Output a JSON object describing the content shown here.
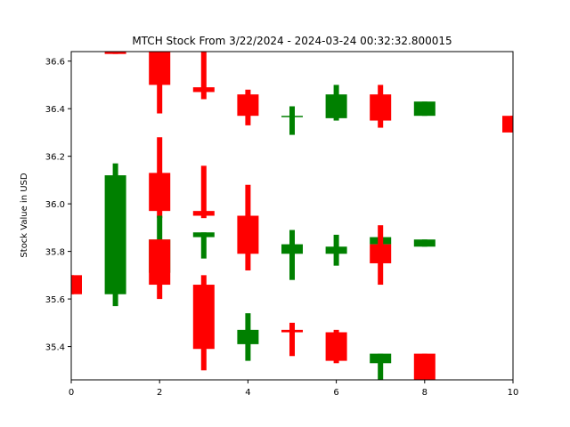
{
  "chart_data": {
    "type": "candlestick",
    "title": "MTCH Stock From 3/22/2024 - 2024-03-24 00:32:32.800015",
    "xlabel": "",
    "ylabel": "Stock Value in USD",
    "xlim": [
      0,
      10
    ],
    "ylim": [
      35.26,
      36.64
    ],
    "x_ticks": [
      0,
      2,
      4,
      6,
      8,
      10
    ],
    "y_ticks": [
      35.4,
      35.6,
      35.8,
      36.0,
      36.2,
      36.4,
      36.6
    ],
    "grid": false,
    "colors": {
      "up": "#008000",
      "down": "#ff0000"
    },
    "candles": [
      {
        "x": 0,
        "open": 35.7,
        "close": 35.62,
        "high": 35.7,
        "low": 35.62
      },
      {
        "x": 1,
        "open": 36.64,
        "close": 36.63,
        "high": 36.64,
        "low": 36.63
      },
      {
        "x": 1,
        "open": 35.62,
        "close": 36.12,
        "high": 36.17,
        "low": 35.57
      },
      {
        "x": 2,
        "open": 36.64,
        "close": 36.5,
        "high": 36.64,
        "low": 36.38
      },
      {
        "x": 2,
        "open": 36.13,
        "close": 35.97,
        "high": 36.28,
        "low": 35.94
      },
      {
        "x": 2,
        "open": 35.71,
        "close": 35.85,
        "high": 35.95,
        "low": 35.69
      },
      {
        "x": 2,
        "open": 35.85,
        "close": 35.66,
        "high": 35.85,
        "low": 35.6
      },
      {
        "x": 3,
        "open": 36.49,
        "close": 36.47,
        "high": 36.64,
        "low": 36.44
      },
      {
        "x": 3,
        "open": 35.97,
        "close": 35.95,
        "high": 36.16,
        "low": 35.94
      },
      {
        "x": 3,
        "open": 35.86,
        "close": 35.88,
        "high": 35.88,
        "low": 35.77
      },
      {
        "x": 3,
        "open": 35.66,
        "close": 35.39,
        "high": 35.7,
        "low": 35.3
      },
      {
        "x": 4,
        "open": 36.46,
        "close": 36.37,
        "high": 36.48,
        "low": 36.33
      },
      {
        "x": 4,
        "open": 35.95,
        "close": 35.79,
        "high": 36.08,
        "low": 35.72
      },
      {
        "x": 4,
        "open": 35.41,
        "close": 35.47,
        "high": 35.54,
        "low": 35.34
      },
      {
        "x": 5,
        "open": 36.37,
        "close": 36.37,
        "high": 36.41,
        "low": 36.29
      },
      {
        "x": 5,
        "open": 35.79,
        "close": 35.83,
        "high": 35.89,
        "low": 35.68
      },
      {
        "x": 5,
        "open": 35.47,
        "close": 35.46,
        "high": 35.5,
        "low": 35.36
      },
      {
        "x": 6,
        "open": 36.36,
        "close": 36.46,
        "high": 36.5,
        "low": 36.35
      },
      {
        "x": 6,
        "open": 35.79,
        "close": 35.82,
        "high": 35.87,
        "low": 35.74
      },
      {
        "x": 6,
        "open": 35.46,
        "close": 35.34,
        "high": 35.47,
        "low": 35.33
      },
      {
        "x": 7,
        "open": 36.46,
        "close": 36.35,
        "high": 36.5,
        "low": 36.32
      },
      {
        "x": 7,
        "open": 35.83,
        "close": 35.86,
        "high": 35.86,
        "low": 35.82
      },
      {
        "x": 7,
        "open": 35.83,
        "close": 35.75,
        "high": 35.91,
        "low": 35.66
      },
      {
        "x": 7,
        "open": 35.33,
        "close": 35.37,
        "high": 35.37,
        "low": 35.26
      },
      {
        "x": 8,
        "open": 36.37,
        "close": 36.43,
        "high": 36.43,
        "low": 36.37
      },
      {
        "x": 8,
        "open": 35.82,
        "close": 35.85,
        "high": 35.85,
        "low": 35.82
      },
      {
        "x": 8,
        "open": 35.37,
        "close": 35.26,
        "high": 35.37,
        "low": 35.26
      },
      {
        "x": 10,
        "open": 36.37,
        "close": 36.3,
        "high": 36.37,
        "low": 36.3
      }
    ]
  }
}
